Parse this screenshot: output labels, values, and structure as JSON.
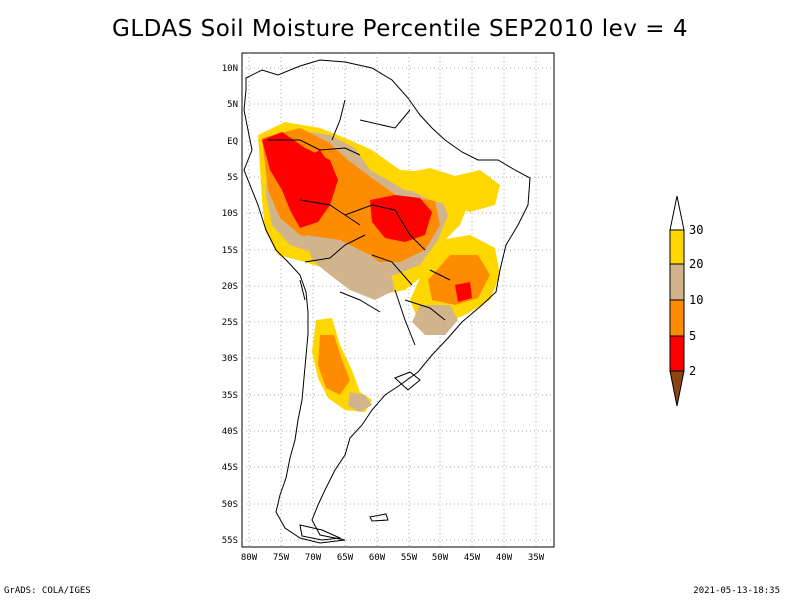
{
  "title": "GLDAS Soil Moisture Percentile SEP2010 lev = 4",
  "footer": {
    "left": "GrADS: COLA/IGES",
    "right": "2021-05-13-18:35"
  },
  "map": {
    "lat_ticks": [
      "10N",
      "5N",
      "EQ",
      "5S",
      "10S",
      "15S",
      "20S",
      "25S",
      "30S",
      "35S",
      "40S",
      "45S",
      "50S",
      "55S"
    ],
    "lon_ticks": [
      "80W",
      "75W",
      "70W",
      "65W",
      "60W",
      "55W",
      "50W",
      "45W",
      "40W",
      "35W"
    ],
    "lat_values": [
      10,
      5,
      0,
      -5,
      -10,
      -15,
      -20,
      -25,
      -30,
      -35,
      -40,
      -45,
      -50,
      -55
    ],
    "lon_values": [
      -80,
      -75,
      -70,
      -65,
      -60,
      -55,
      -50,
      -45,
      -40,
      -35
    ],
    "extent": {
      "lon": [
        -81,
        -33
      ],
      "lat": [
        -56,
        11
      ]
    },
    "grid": true
  },
  "legend": {
    "labels": [
      "30",
      "20",
      "10",
      "5",
      "2"
    ],
    "colors": {
      "gt30": "#ffffff",
      "c20_30": "#ffd700",
      "c10_20": "#d2b48c",
      "c5_10": "#ff8c00",
      "c2_5": "#ff0000",
      "lt2": "#8b4513"
    }
  },
  "colors": {
    "yellow": "#ffd700",
    "tan": "#d2b48c",
    "orange": "#ff8c00",
    "red": "#ff0000",
    "line": "#000000",
    "grid": "#aaaaaa"
  }
}
